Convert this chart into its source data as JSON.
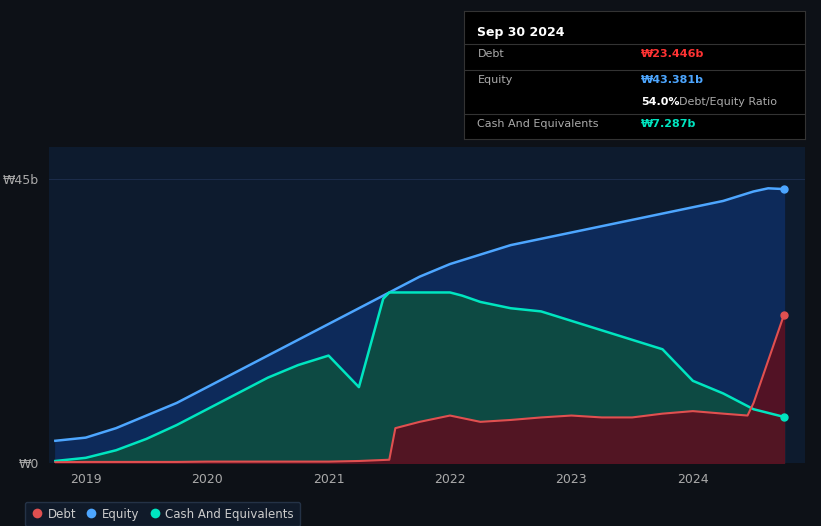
{
  "background_color": "#0d1117",
  "plot_bg_color": "#0d1b2e",
  "grid_color": "#1e3050",
  "title_box": {
    "date": "Sep 30 2024",
    "debt_label": "Debt",
    "debt_value": "₩23.446b",
    "equity_label": "Equity",
    "equity_value": "₩43.381b",
    "ratio_value": "54.0%",
    "ratio_label": "Debt/Equity Ratio",
    "cash_label": "Cash And Equivalents",
    "cash_value": "₩7.287b"
  },
  "ylabel_top": "₩45b",
  "ylabel_bottom": "₩0",
  "x_ticks": [
    2019,
    2020,
    2021,
    2022,
    2023,
    2024
  ],
  "ylim": [
    0,
    50
  ],
  "debt_color": "#e05050",
  "equity_color": "#4da6ff",
  "cash_color": "#00e5c0",
  "debt_fill_color": "#5a1020",
  "equity_fill_color": "#0d2a5a",
  "cash_fill_color": "#0d5040",
  "legend_bg": "#111d2e",
  "legend_border": "#2a3a50",
  "equity": {
    "x": [
      2018.75,
      2019.0,
      2019.25,
      2019.5,
      2019.75,
      2020.0,
      2020.25,
      2020.5,
      2020.75,
      2021.0,
      2021.25,
      2021.5,
      2021.75,
      2022.0,
      2022.25,
      2022.5,
      2022.75,
      2023.0,
      2023.25,
      2023.5,
      2023.75,
      2024.0,
      2024.25,
      2024.5,
      2024.62,
      2024.75
    ],
    "y": [
      3.5,
      4.0,
      5.5,
      7.5,
      9.5,
      12.0,
      14.5,
      17.0,
      19.5,
      22.0,
      24.5,
      27.0,
      29.5,
      31.5,
      33.0,
      34.5,
      35.5,
      36.5,
      37.5,
      38.5,
      39.5,
      40.5,
      41.5,
      43.0,
      43.5,
      43.381
    ]
  },
  "debt": {
    "x": [
      2018.75,
      2019.0,
      2019.25,
      2019.5,
      2019.75,
      2020.0,
      2020.25,
      2020.5,
      2020.75,
      2021.0,
      2021.25,
      2021.5,
      2021.55,
      2021.75,
      2022.0,
      2022.25,
      2022.5,
      2022.75,
      2023.0,
      2023.25,
      2023.5,
      2023.75,
      2024.0,
      2024.25,
      2024.45,
      2024.5,
      2024.75
    ],
    "y": [
      0.1,
      0.15,
      0.15,
      0.15,
      0.15,
      0.2,
      0.2,
      0.2,
      0.2,
      0.2,
      0.3,
      0.5,
      5.5,
      6.5,
      7.5,
      6.5,
      6.8,
      7.2,
      7.5,
      7.2,
      7.2,
      7.8,
      8.2,
      7.8,
      7.5,
      9.5,
      23.446
    ]
  },
  "cash": {
    "x": [
      2018.75,
      2019.0,
      2019.25,
      2019.5,
      2019.75,
      2020.0,
      2020.25,
      2020.5,
      2020.75,
      2021.0,
      2021.25,
      2021.45,
      2021.5,
      2021.75,
      2022.0,
      2022.1,
      2022.25,
      2022.5,
      2022.75,
      2023.0,
      2023.25,
      2023.5,
      2023.75,
      2024.0,
      2024.25,
      2024.5,
      2024.75
    ],
    "y": [
      0.3,
      0.8,
      2.0,
      3.8,
      6.0,
      8.5,
      11.0,
      13.5,
      15.5,
      17.0,
      12.0,
      26.0,
      27.0,
      27.0,
      27.0,
      26.5,
      25.5,
      24.5,
      24.0,
      22.5,
      21.0,
      19.5,
      18.0,
      13.0,
      11.0,
      8.5,
      7.287
    ]
  }
}
